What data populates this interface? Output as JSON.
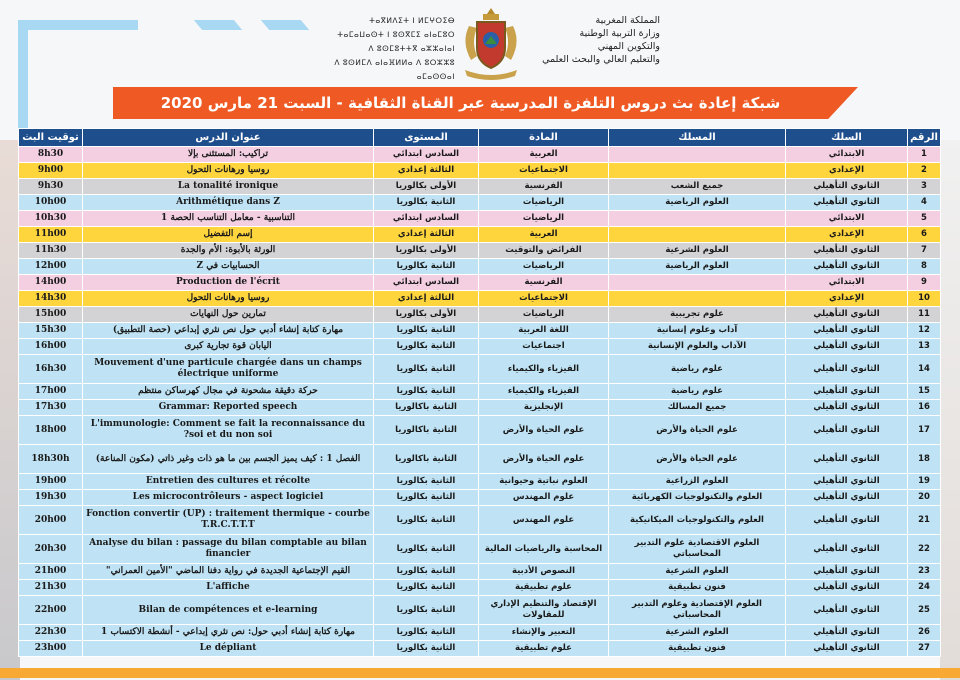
{
  "header": {
    "ministry_lines": [
      "المملكة المغربية",
      "وزارة التربية الوطنية",
      "والتكوين المهني",
      "والتعليم العالي والبحث العلمي"
    ],
    "tifinagh_lines": [
      "ⵜⴰⴳⵍⴷⵉⵜ ⵏ ⵍⵎⵖⵔⵉⴱ",
      "ⵜⴰⵎⴰⵡⴰⵙⵜ ⵏ ⵓⵙⴳⵎⵉ ⴰⵏⴰⵎⵓⵔ",
      "ⴷ ⵓⵙⵎⵓⵜⵜⴳ ⴰⵣⵣⴰⵏⴰⵏ",
      "ⴷ ⵓⵙⵍⵎⴷ ⴰⵏⴰⴼⵍⵍⴰ ⴷ ⵓⵔⵣⵣⵓ ⴰⵎⴰⵙⵙⴰⵏ"
    ],
    "title": "شبكة إعادة بث دروس التلفزة المدرسية عبر القناة الثقافية - السبت 21 مارس 2020"
  },
  "colors": {
    "header": "#1f4e8c",
    "banner": "#ef5a24",
    "pink": "#f3cfe1",
    "yellow": "#ffd53d",
    "gray": "#d3d3d5",
    "blue": "#bfe3f4"
  },
  "table": {
    "columns": [
      "الرقم",
      "السلك",
      "المسلك",
      "المادة",
      "المستوى",
      "عنوان الدرس",
      "توقيت البث"
    ],
    "rows": [
      {
        "n": "1",
        "cycle": "الابتدائي",
        "track": "",
        "subject": "العربية",
        "level": "السادس ابتدائي",
        "title": "تراكيب: المستثنى بإلا",
        "time": "8h30",
        "color": "pink"
      },
      {
        "n": "2",
        "cycle": "الإعدادي",
        "track": "",
        "subject": "الاجتماعيات",
        "level": "الثالثة إعدادي",
        "title": "روسيا ورهانات التحول",
        "time": "9h00",
        "color": "yellow"
      },
      {
        "n": "3",
        "cycle": "الثانوي التأهيلي",
        "track": "جميع الشعب",
        "subject": "الفرنسية",
        "level": "الأولى بكالوريا",
        "title": "La tonalité ironique",
        "time": "9h30",
        "color": "gray"
      },
      {
        "n": "4",
        "cycle": "الثانوي التأهيلي",
        "track": "العلوم الرياضية",
        "subject": "الرياضيات",
        "level": "الثانية بكالوريا",
        "title": "Arithmétique dans Z",
        "time": "10h00",
        "color": "blue"
      },
      {
        "n": "5",
        "cycle": "الابتدائي",
        "track": "",
        "subject": "الرياضيات",
        "level": "السادس ابتدائي",
        "title": "التناسبية - معامل التناسب الحصة 1",
        "time": "10h30",
        "color": "pink"
      },
      {
        "n": "6",
        "cycle": "الإعدادي",
        "track": "",
        "subject": "العربية",
        "level": "الثالثة إعدادي",
        "title": "إسم التفضيل",
        "time": "11h00",
        "color": "yellow"
      },
      {
        "n": "7",
        "cycle": "الثانوي التأهيلي",
        "track": "العلوم الشرعية",
        "subject": "الفرائض والتوقيت",
        "level": "الأولى بكالوريا",
        "title": "الورثة بالأبوة: الأم والجدة",
        "time": "11h30",
        "color": "gray"
      },
      {
        "n": "8",
        "cycle": "الثانوي التأهيلي",
        "track": "العلوم الرياضية",
        "subject": "الرياضيات",
        "level": "الثانية بكالوريا",
        "title": "الحسابيات في Z",
        "time": "12h00",
        "color": "blue"
      },
      {
        "n": "9",
        "cycle": "الابتدائي",
        "track": "",
        "subject": "الفرنسية",
        "level": "السادس ابتدائي",
        "title": "Production de l'écrit",
        "time": "14h00",
        "color": "pink"
      },
      {
        "n": "10",
        "cycle": "الإعدادي",
        "track": "",
        "subject": "الاجتماعيات",
        "level": "الثالثة إعدادي",
        "title": "روسيا ورهانات التحول",
        "time": "14h30",
        "color": "yellow"
      },
      {
        "n": "11",
        "cycle": "الثانوي التأهيلي",
        "track": "علوم تجريبية",
        "subject": "الرياضيات",
        "level": "الأولى بكالوريا",
        "title": "تمارين حول النهايات",
        "time": "15h00",
        "color": "gray"
      },
      {
        "n": "12",
        "cycle": "الثانوي التأهيلي",
        "track": "آداب وعلوم إنسانية",
        "subject": "اللغة العربية",
        "level": "الثانية بكالوريا",
        "title": "مهارة كتابة إنشاء أدبي حول نص نثري إبداعي (حصة التطبيق)",
        "time": "15h30",
        "color": "blue"
      },
      {
        "n": "13",
        "cycle": "الثانوي التأهيلي",
        "track": "الآداب والعلوم الإنسانية",
        "subject": "اجتماعيات",
        "level": "الثانية بكالوريا",
        "title": "اليابان قوة تجارية كبرى",
        "time": "16h00",
        "color": "blue"
      },
      {
        "n": "14",
        "cycle": "الثانوي التأهيلي",
        "track": "علوم رياضية",
        "subject": "الفيزياء والكيمياء",
        "level": "الثانية بكالوريا",
        "title": "Mouvement d'une particule chargée dans un champs électrique uniforme",
        "time": "16h30",
        "color": "blue",
        "tall": true
      },
      {
        "n": "15",
        "cycle": "الثانوي التأهيلي",
        "track": "علوم رياضية",
        "subject": "الفيزياء والكيمياء",
        "level": "الثانية بكالوريا",
        "title": "حركة دقيقة مشحونة في مجال كهرساكن منتظم",
        "time": "17h00",
        "color": "blue"
      },
      {
        "n": "16",
        "cycle": "الثانوي التأهيلي",
        "track": "جميع المسالك",
        "subject": "الإنجليزية",
        "level": "الثانية باكالوريا",
        "title": "Grammar: Reported speech",
        "time": "17h30",
        "color": "blue"
      },
      {
        "n": "17",
        "cycle": "الثانوي التأهيلي",
        "track": "علوم الحياة والأرض",
        "subject": "علوم الحياة والأرض",
        "level": "الثانية باكالوريا",
        "title": "L'immunologie: Comment se fait la reconnaissance du soi et du non soi?",
        "time": "18h00",
        "color": "blue",
        "tall": true
      },
      {
        "n": "18",
        "cycle": "الثانوي التأهيلي",
        "track": "علوم الحياة والأرض",
        "subject": "علوم الحياة والأرض",
        "level": "الثانية باكالوريا",
        "title": "الفصل 1 : كيف يميز الجسم بين ما هو ذات وغير ذاتي (مكون المناعة)",
        "time": "18h30h",
        "color": "blue",
        "tall": true
      },
      {
        "n": "19",
        "cycle": "الثانوي التأهيلي",
        "track": "العلوم الزراعية",
        "subject": "العلوم نباتية وحيوانية",
        "level": "الثانية بكالوريا",
        "title": "Entretien des cultures et récolte",
        "time": "19h00",
        "color": "blue"
      },
      {
        "n": "20",
        "cycle": "الثانوي التأهيلي",
        "track": "العلوم والتكنولوجيات الكهربائية",
        "subject": "علوم المهندس",
        "level": "الثانية بكالوريا",
        "title": "Les microcontrôleurs - aspect logiciel",
        "time": "19h30",
        "color": "blue"
      },
      {
        "n": "21",
        "cycle": "الثانوي التأهيلي",
        "track": "العلوم والتكنولوجيات الميكانيكية",
        "subject": "علوم المهندس",
        "level": "الثانية بكالوريا",
        "title": "Fonction convertir (UP) : traitement thermique - courbe T.R.C.T.T.T",
        "time": "20h00",
        "color": "blue",
        "tall": true
      },
      {
        "n": "22",
        "cycle": "الثانوي التأهيلي",
        "track": "العلوم الاقتصادية علوم التدبير المحاسباتي",
        "subject": "المحاسبة والرياضيات المالية",
        "level": "الثانية بكالوريا",
        "title": "Analyse du bilan : passage du bilan comptable au bilan financier",
        "time": "20h30",
        "color": "blue",
        "tall": true
      },
      {
        "n": "23",
        "cycle": "الثانوي التأهيلي",
        "track": "العلوم الشرعية",
        "subject": "النصوص الأدبية",
        "level": "الثانية بكالوريا",
        "title": "القيم الإجتماعية الجديدة في رواية دفنا الماضي \"الأمين العمراني\"",
        "time": "21h00",
        "color": "blue"
      },
      {
        "n": "24",
        "cycle": "الثانوي التأهيلي",
        "track": "فنون تطبيقية",
        "subject": "علوم تطبيقية",
        "level": "الثانية بكالوريا",
        "title": "L'affiche",
        "time": "21h30",
        "color": "blue"
      },
      {
        "n": "25",
        "cycle": "الثانوي التأهيلي",
        "track": "العلوم الإقتصادية وعلوم التدبير المحاسباتي",
        "subject": "الإقتصاد والتنظيم الإداري للمقاولات",
        "level": "الثانية بكالوريا",
        "title": "Bilan de compétences et e-learning",
        "time": "22h00",
        "color": "blue",
        "tall": true
      },
      {
        "n": "26",
        "cycle": "الثانوي التأهيلي",
        "track": "العلوم الشرعية",
        "subject": "التعبير والإنشاء",
        "level": "الثانية بكالوريا",
        "title": "مهارة كتابة إنشاء أدبي حول: نص نثري إبداعي - أنشطة الاكتساب 1",
        "time": "22h30",
        "color": "blue"
      },
      {
        "n": "27",
        "cycle": "الثانوي التأهيلي",
        "track": "فنون تطبيقية",
        "subject": "علوم تطبيقية",
        "level": "الثانية بكالوريا",
        "title": "Le dépliant",
        "time": "23h00",
        "color": "blue"
      }
    ]
  }
}
